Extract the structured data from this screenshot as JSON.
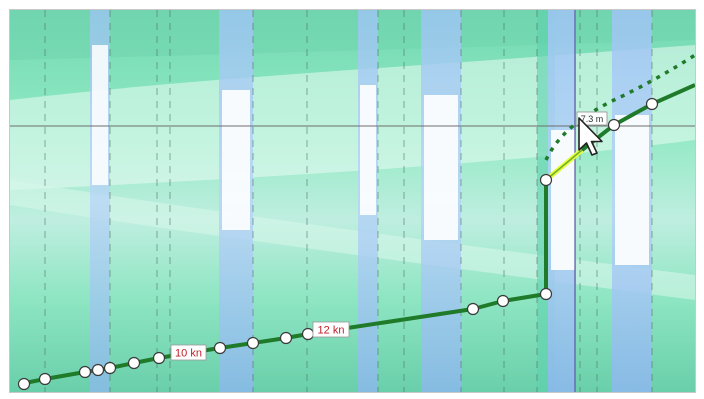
{
  "labels": {
    "speed_a": "10 kn",
    "speed_b": "12 kn",
    "depth_readout": "7.3 m"
  },
  "colors": {
    "route": "#1f7a2a",
    "route_highlight": "#e6ff3a",
    "label_text": "#c0202a",
    "sea_green": "#8ee9c2",
    "sea_blue": "#9ec4f5",
    "crosshair": "#6e6e6e"
  },
  "icons": {
    "cursor": "mouse-pointer-arrow-icon"
  }
}
